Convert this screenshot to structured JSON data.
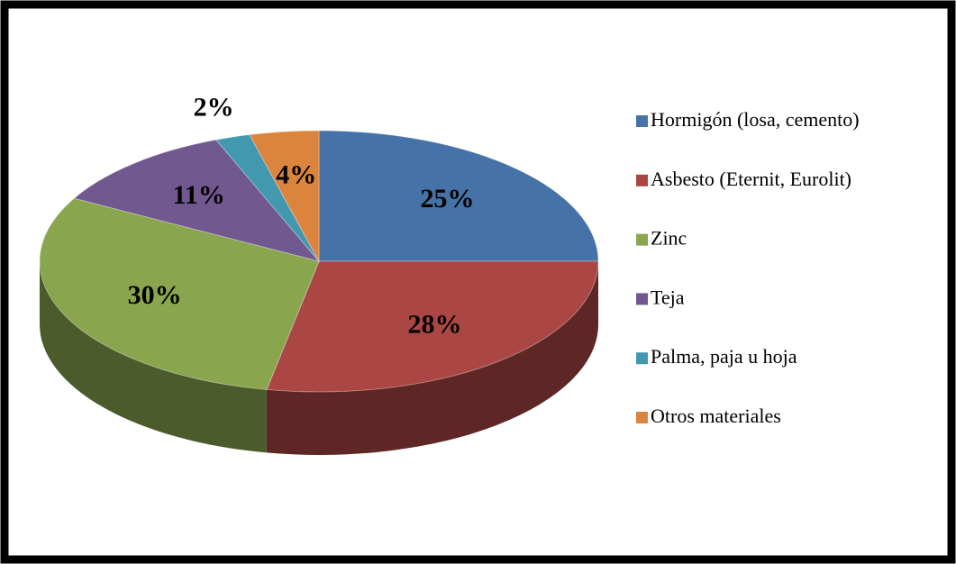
{
  "chart_data": {
    "type": "pie",
    "categories": [
      "Hormigón (losa, cemento)",
      "Asbesto (Eternit, Eurolit)",
      "Zinc",
      "Teja",
      "Palma, paja u hoja",
      "Otros materiales"
    ],
    "values": [
      25,
      28,
      30,
      11,
      2,
      4
    ],
    "value_labels": [
      "25%",
      "28%",
      "30%",
      "11%",
      "2%",
      "4%"
    ],
    "colors": [
      "#4572a7",
      "#aa4643",
      "#89a54e",
      "#71588f",
      "#4198af",
      "#db843d"
    ],
    "legend": "right"
  }
}
